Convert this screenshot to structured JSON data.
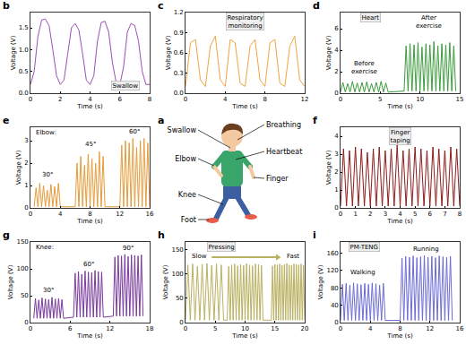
{
  "diagram": {
    "letter": "a",
    "labels": [
      "Swallow",
      "Breathing",
      "Elbow",
      "Heartbeat",
      "Finger",
      "Knee",
      "Foot"
    ]
  },
  "chart_data": [
    {
      "letter": "b",
      "type": "line",
      "color": "#9b4fb5",
      "x_label": "Time (s)",
      "y_label": "Voltage (V)",
      "annotations": [
        "Swallow"
      ],
      "xlim": [
        0,
        8
      ],
      "xticks": [
        0,
        2,
        4,
        6,
        8
      ],
      "ylim": [
        0,
        1.85
      ],
      "yticks": [
        {
          "value": 0,
          "label": "0.0"
        },
        {
          "value": 0.5,
          "label": "0.5"
        },
        {
          "value": 1,
          "label": "1.0"
        },
        {
          "value": 1.5,
          "label": "1.5"
        }
      ],
      "x": [
        0,
        0.25,
        0.5,
        0.75,
        1,
        1.25,
        1.5,
        1.75,
        2,
        2.25,
        2.5,
        2.75,
        3,
        3.25,
        3.5,
        3.75,
        4,
        4.25,
        4.5,
        4.75,
        5,
        5.25,
        5.5,
        5.75,
        6,
        6.25,
        6.5,
        6.75,
        7,
        7.25,
        7.5,
        7.75,
        8
      ],
      "values": [
        0.2,
        0.5,
        1.3,
        1.68,
        1.7,
        1.55,
        1.0,
        0.4,
        0.2,
        0.3,
        0.9,
        1.5,
        1.6,
        1.45,
        0.9,
        0.3,
        0.2,
        0.4,
        1.2,
        1.62,
        1.65,
        1.4,
        0.7,
        0.25,
        0.2,
        0.6,
        1.4,
        1.6,
        1.55,
        1.2,
        0.5,
        0.2,
        0.2
      ]
    },
    {
      "letter": "c",
      "type": "line",
      "color": "#f0a540",
      "x_label": "Time (s)",
      "y_label": "Voltage (V)",
      "annotations": [
        "Respiratory monitoring"
      ],
      "xlim": [
        0,
        12
      ],
      "xticks": [
        0,
        4,
        8,
        12
      ],
      "ylim": [
        0,
        1.2
      ],
      "yticks": [
        {
          "value": 0,
          "label": "0.0"
        },
        {
          "value": 0.3,
          "label": "0.3"
        },
        {
          "value": 0.6,
          "label": "0.6"
        },
        {
          "value": 0.9,
          "label": "0.9"
        },
        {
          "value": 1.2,
          "label": "1.2"
        }
      ],
      "x": [
        0,
        0.5,
        1,
        1.5,
        2,
        2.5,
        3,
        3.5,
        4,
        4.5,
        5,
        5.5,
        6,
        6.5,
        7,
        7.5,
        8,
        8.5,
        9,
        9.5,
        10,
        10.5,
        11,
        11.5,
        12
      ],
      "values": [
        0.1,
        0.75,
        0.8,
        0.2,
        0.1,
        0.7,
        0.85,
        0.2,
        0.1,
        0.8,
        0.75,
        0.15,
        0.1,
        0.7,
        0.8,
        0.2,
        0.1,
        0.75,
        0.8,
        0.15,
        0.1,
        0.7,
        0.85,
        0.2,
        0.1
      ]
    },
    {
      "letter": "d",
      "type": "line",
      "color": "#3a9c3a",
      "x_label": "Time (s)",
      "y_label": "Voltage (V)",
      "annotations": [
        "Heart",
        "Before exercise",
        "After exercise"
      ],
      "xlim": [
        0,
        15
      ],
      "xticks": [
        0,
        5,
        10,
        15
      ],
      "ylim": [
        0,
        7.5
      ],
      "yticks": [
        0,
        2,
        4,
        6
      ],
      "x": [
        0,
        0.3,
        0.6,
        0.9,
        1.2,
        1.5,
        1.8,
        2.1,
        2.4,
        2.7,
        3,
        3.3,
        3.6,
        3.9,
        4.2,
        4.5,
        4.8,
        5.1,
        5.4,
        5.7,
        6,
        8,
        8.25,
        8.5,
        8.75,
        9,
        9.25,
        9.5,
        9.75,
        10,
        10.25,
        10.5,
        10.75,
        11,
        11.25,
        11.5,
        11.75,
        12,
        12.25,
        12.5,
        12.75,
        13,
        13.25,
        13.5,
        13.75,
        14,
        14.25,
        14.5
      ],
      "values": [
        0.1,
        1.0,
        0.1,
        0.9,
        0.1,
        1.1,
        0.1,
        0.95,
        0.1,
        1.0,
        0.1,
        1.05,
        0.1,
        0.9,
        0.1,
        1.0,
        0.1,
        1.1,
        0.1,
        0.95,
        0.1,
        0.2,
        4.4,
        0.2,
        4.6,
        0.2,
        4.5,
        0.2,
        4.7,
        0.2,
        4.3,
        0.2,
        4.6,
        0.2,
        4.5,
        0.2,
        4.8,
        0.2,
        4.4,
        0.2,
        4.6,
        0.2,
        4.5,
        0.2,
        4.7,
        0.2,
        4.4,
        0.2
      ]
    },
    {
      "letter": "e",
      "type": "line",
      "color": "#e69b3a",
      "x_label": "Time (s)",
      "y_label": "Voltage (V)",
      "annotations": [
        "Elbow:",
        "30°",
        "45°",
        "60°"
      ],
      "xlim": [
        0,
        16
      ],
      "xticks": [
        0,
        4,
        8,
        12,
        16
      ],
      "ylim": [
        0,
        3.6
      ],
      "yticks": [
        0,
        1,
        2,
        3
      ],
      "x": [
        0.5,
        0.75,
        1,
        1.25,
        1.5,
        1.75,
        2,
        2.25,
        2.5,
        2.75,
        3,
        3.25,
        3.5,
        3.75,
        4,
        6,
        6.25,
        6.5,
        6.75,
        7,
        7.25,
        7.5,
        7.75,
        8,
        8.25,
        8.5,
        8.75,
        9,
        9.25,
        9.5,
        9.75,
        10,
        12,
        12.25,
        12.5,
        12.75,
        13,
        13.25,
        13.5,
        13.75,
        14,
        14.25,
        14.5,
        14.75,
        15,
        15.25,
        15.5,
        15.75,
        16
      ],
      "values": [
        0.05,
        0.9,
        0.05,
        1.1,
        0.05,
        1.0,
        0.05,
        0.8,
        0.05,
        1.05,
        0.05,
        0.95,
        0.05,
        1.1,
        0.05,
        0.05,
        2.0,
        0.05,
        2.3,
        0.05,
        1.9,
        0.05,
        2.4,
        0.05,
        2.2,
        0.05,
        2.0,
        0.05,
        2.5,
        0.05,
        2.3,
        0.05,
        0.05,
        2.8,
        0.05,
        3.0,
        0.05,
        2.9,
        0.05,
        3.1,
        0.05,
        2.7,
        0.05,
        3.0,
        0.05,
        3.1,
        0.05,
        2.9,
        0.05
      ]
    },
    {
      "letter": "f",
      "type": "line",
      "color": "#8e1c1c",
      "x_label": "Time (s)",
      "y_label": "Voltage (V)",
      "annotations": [
        "Finger taping"
      ],
      "xlim": [
        0,
        8
      ],
      "xticks": [
        0,
        1,
        2,
        3,
        4,
        5,
        6,
        7,
        8
      ],
      "ylim": [
        0,
        4.5
      ],
      "yticks": [
        0,
        1,
        2,
        3,
        4
      ],
      "x": [
        0,
        0.2,
        0.4,
        0.6,
        0.8,
        1,
        1.2,
        1.4,
        1.6,
        1.8,
        2,
        2.2,
        2.4,
        2.6,
        2.8,
        3,
        3.2,
        3.4,
        3.6,
        3.8,
        4,
        4.2,
        4.4,
        4.6,
        4.8,
        5,
        5.2,
        5.4,
        5.6,
        5.8,
        6,
        6.2,
        6.4,
        6.6,
        6.8,
        7,
        7.2,
        7.4,
        7.6,
        7.8,
        8
      ],
      "values": [
        0.1,
        3.3,
        0.1,
        3.2,
        0.1,
        3.4,
        0.1,
        3.3,
        0.1,
        3.1,
        0.1,
        3.3,
        0.1,
        3.4,
        0.1,
        3.2,
        0.1,
        3.3,
        0.1,
        3.5,
        0.1,
        3.2,
        0.1,
        3.3,
        0.1,
        3.4,
        0.1,
        3.3,
        0.1,
        3.2,
        0.1,
        3.4,
        0.1,
        3.3,
        0.1,
        3.2,
        0.1,
        3.4,
        0.1,
        3.3,
        0.1
      ]
    },
    {
      "letter": "g",
      "type": "line",
      "color": "#7a3a9e",
      "x_label": "Time (s)",
      "y_label": "Voltage (V)",
      "annotations": [
        "Knee:",
        "30°",
        "60°",
        "90°"
      ],
      "xlim": [
        0,
        18
      ],
      "xticks": [
        0,
        6,
        12,
        18
      ],
      "ylim": [
        0,
        150
      ],
      "yticks": [
        0,
        50,
        100,
        150
      ],
      "x": [
        0.5,
        0.75,
        1,
        1.25,
        1.5,
        1.75,
        2,
        2.25,
        2.5,
        2.75,
        3,
        3.25,
        3.5,
        3.75,
        4,
        4.25,
        4.5,
        4.75,
        5,
        6.5,
        6.75,
        7,
        7.25,
        7.5,
        7.75,
        8,
        8.25,
        8.5,
        8.75,
        9,
        9.25,
        9.5,
        9.75,
        10,
        10.25,
        10.5,
        10.75,
        11,
        12.5,
        12.75,
        13,
        13.25,
        13.5,
        13.75,
        14,
        14.25,
        14.5,
        14.75,
        15,
        15.25,
        15.5,
        15.75,
        16,
        16.25,
        16.5,
        16.75,
        17
      ],
      "values": [
        8,
        45,
        8,
        42,
        8,
        46,
        8,
        44,
        8,
        43,
        8,
        47,
        8,
        44,
        8,
        45,
        8,
        43,
        8,
        10,
        92,
        10,
        95,
        10,
        90,
        10,
        96,
        10,
        94,
        10,
        93,
        10,
        97,
        10,
        95,
        10,
        94,
        10,
        12,
        122,
        12,
        125,
        12,
        124,
        12,
        127,
        12,
        123,
        12,
        126,
        12,
        125,
        12,
        124,
        12,
        126,
        12
      ]
    },
    {
      "letter": "h",
      "type": "line",
      "color": "#b9b060",
      "x_label": "Time (s)",
      "y_label": "Voltage (V)",
      "annotations": [
        "Pressing",
        "Slow",
        "Fast"
      ],
      "xlim": [
        0,
        20
      ],
      "xticks": [
        0,
        5,
        10,
        15,
        20
      ],
      "ylim": [
        0,
        165
      ],
      "yticks": [
        0,
        50,
        100,
        150
      ],
      "x": [
        0,
        0.4,
        0.8,
        1.2,
        1.6,
        2,
        2.4,
        2.8,
        3.2,
        3.6,
        4,
        4.4,
        4.8,
        5.2,
        5.6,
        6,
        6.4,
        7,
        7.25,
        7.5,
        7.75,
        8,
        8.25,
        8.5,
        8.75,
        9,
        9.25,
        9.5,
        9.75,
        10,
        10.25,
        10.5,
        10.75,
        11,
        11.25,
        11.5,
        11.75,
        12,
        12.25,
        12.5,
        12.75,
        13,
        14.4,
        14.6,
        14.8,
        15,
        15.2,
        15.4,
        15.6,
        15.8,
        16,
        16.2,
        16.4,
        16.6,
        16.8,
        17,
        17.2,
        17.4,
        17.6,
        17.8,
        18,
        18.2,
        18.4,
        18.6,
        18.8,
        19,
        19.2,
        19.4,
        19.6,
        19.8,
        20
      ],
      "values": [
        5,
        118,
        5,
        120,
        5,
        115,
        5,
        119,
        5,
        121,
        5,
        117,
        5,
        120,
        5,
        118,
        5,
        5,
        115,
        5,
        118,
        5,
        120,
        5,
        116,
        5,
        119,
        5,
        117,
        5,
        121,
        5,
        118,
        5,
        116,
        5,
        120,
        5,
        119,
        5,
        117,
        5,
        5,
        116,
        5,
        119,
        5,
        118,
        5,
        120,
        5,
        117,
        5,
        119,
        5,
        121,
        5,
        118,
        5,
        117,
        5,
        120,
        5,
        119,
        5,
        118,
        5,
        120,
        5,
        117,
        5
      ]
    },
    {
      "letter": "i",
      "type": "line",
      "color": "#6b6bd6",
      "x_label": "Time (s)",
      "y_label": "Voltage (V)",
      "annotations": [
        "PM-TENG",
        "Walking",
        "Running"
      ],
      "xlim": [
        0,
        16
      ],
      "xticks": [
        0,
        4,
        8,
        12,
        16
      ],
      "ylim": [
        0,
        185
      ],
      "yticks": [
        0,
        40,
        80,
        120,
        160
      ],
      "x": [
        0,
        0.25,
        0.5,
        0.75,
        1,
        1.25,
        1.5,
        1.75,
        2,
        2.25,
        2.5,
        2.75,
        3,
        3.25,
        3.5,
        3.75,
        4,
        4.25,
        4.5,
        4.75,
        5,
        5.25,
        5.5,
        5.75,
        6,
        8,
        8.25,
        8.5,
        8.75,
        9,
        9.25,
        9.5,
        9.75,
        10,
        10.25,
        10.5,
        10.75,
        11,
        11.25,
        11.5,
        11.75,
        12,
        12.25,
        12.5,
        12.75,
        13,
        13.25,
        13.5,
        13.75,
        14,
        14.25,
        14.5,
        14.75,
        15
      ],
      "values": [
        5,
        88,
        5,
        90,
        5,
        86,
        5,
        91,
        5,
        89,
        5,
        87,
        5,
        90,
        5,
        88,
        5,
        91,
        5,
        89,
        5,
        86,
        5,
        90,
        5,
        5,
        148,
        5,
        152,
        5,
        150,
        5,
        153,
        5,
        149,
        5,
        151,
        5,
        154,
        5,
        150,
        5,
        152,
        5,
        149,
        5,
        153,
        5,
        151,
        5,
        150,
        5,
        152,
        5
      ]
    }
  ]
}
